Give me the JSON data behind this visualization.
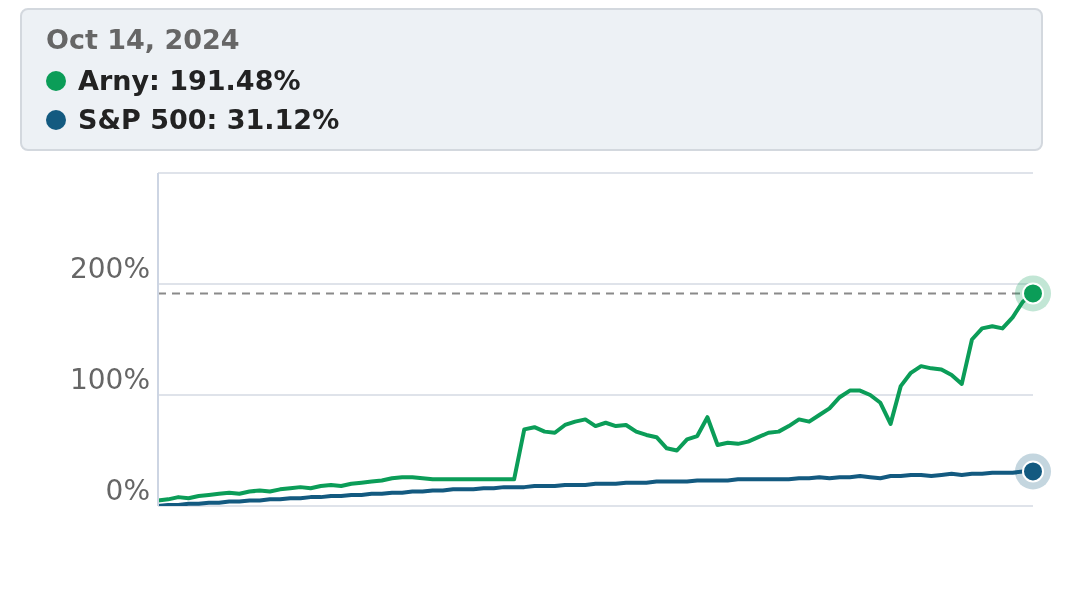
{
  "chart_data": {
    "type": "line",
    "title": "Oct 14, 2024",
    "categories": [
      null,
      null,
      null,
      null,
      null,
      null,
      null,
      null,
      null,
      null,
      null,
      null,
      null,
      null,
      null,
      null,
      null,
      null,
      null,
      null,
      null,
      null,
      null,
      null,
      null,
      null,
      null,
      null,
      null,
      null,
      null,
      null,
      null,
      null,
      null,
      null,
      null,
      null,
      null,
      null,
      null,
      null,
      null,
      null,
      null,
      null,
      null,
      null,
      null,
      null,
      null,
      null,
      null,
      null,
      null,
      null,
      null,
      null,
      null,
      null,
      null,
      null,
      null,
      null,
      null,
      null,
      null,
      null,
      null,
      null,
      null,
      null,
      null,
      null,
      null,
      null,
      null,
      null,
      null,
      null,
      null,
      null,
      null,
      null,
      null,
      null,
      null
    ],
    "series": [
      {
        "name": "Arny: 191.48%",
        "color": "#0b9d58",
        "values": [
          5,
          6,
          8,
          7,
          9,
          10,
          11,
          12,
          11,
          13,
          14,
          13,
          15,
          16,
          17,
          16,
          18,
          19,
          18,
          20,
          21,
          22,
          23,
          25,
          26,
          26,
          25,
          24,
          24,
          24,
          24,
          24,
          24,
          24,
          24,
          24,
          69,
          71,
          67,
          66,
          73,
          76,
          78,
          72,
          75,
          72,
          73,
          67,
          64,
          62,
          52,
          50,
          60,
          63,
          80,
          55,
          57,
          56,
          58,
          62,
          66,
          67,
          72,
          78,
          76,
          82,
          88,
          98,
          104,
          104,
          100,
          93,
          74,
          108,
          120,
          126,
          124,
          123,
          118,
          110,
          150,
          160,
          162,
          160,
          170,
          184,
          191.48
        ]
      },
      {
        "name": "S&P 500: 31.12%",
        "color": "#135a80",
        "values": [
          0,
          1,
          1,
          2,
          2,
          3,
          3,
          4,
          4,
          5,
          5,
          6,
          6,
          7,
          7,
          8,
          8,
          9,
          9,
          10,
          10,
          11,
          11,
          12,
          12,
          13,
          13,
          14,
          14,
          15,
          15,
          15,
          16,
          16,
          17,
          17,
          17,
          18,
          18,
          18,
          19,
          19,
          19,
          20,
          20,
          20,
          21,
          21,
          21,
          22,
          22,
          22,
          22,
          23,
          23,
          23,
          23,
          24,
          24,
          24,
          24,
          24,
          24,
          25,
          25,
          26,
          25,
          26,
          26,
          27,
          26,
          25,
          27,
          27,
          28,
          28,
          27,
          28,
          29,
          28,
          29,
          29,
          30,
          30,
          30,
          31,
          31.12
        ]
      }
    ],
    "ylim": [
      0,
      300
    ],
    "yticks": [
      {
        "value": 0,
        "label": "0%"
      },
      {
        "value": 100,
        "label": "100%"
      },
      {
        "value": 200,
        "label": "200%"
      }
    ],
    "grid": "y",
    "legend": "top",
    "marker": "none",
    "line_style": "solid",
    "ref_lines": [
      {
        "axis": "y",
        "value": 191.48,
        "color": "#8a8a8a",
        "line_style": "dashed"
      }
    ]
  }
}
